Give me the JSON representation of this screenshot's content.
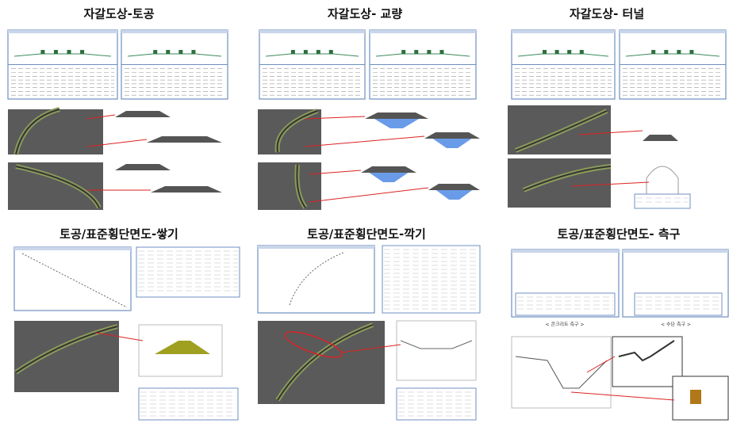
{
  "panels": [
    {
      "title": "자갈도상-토공"
    },
    {
      "title": "자갈도상- 교량"
    },
    {
      "title": "자갈도상- 터널"
    },
    {
      "title": "토공/표준횡단면도-쌓기"
    },
    {
      "title": "토공/표준횡단면도-깍기"
    },
    {
      "title": "토공/표준횡단면도- 측구",
      "captions": [
        "< 콘크리트 측구 >",
        "< 수단 측구 >"
      ]
    }
  ]
}
